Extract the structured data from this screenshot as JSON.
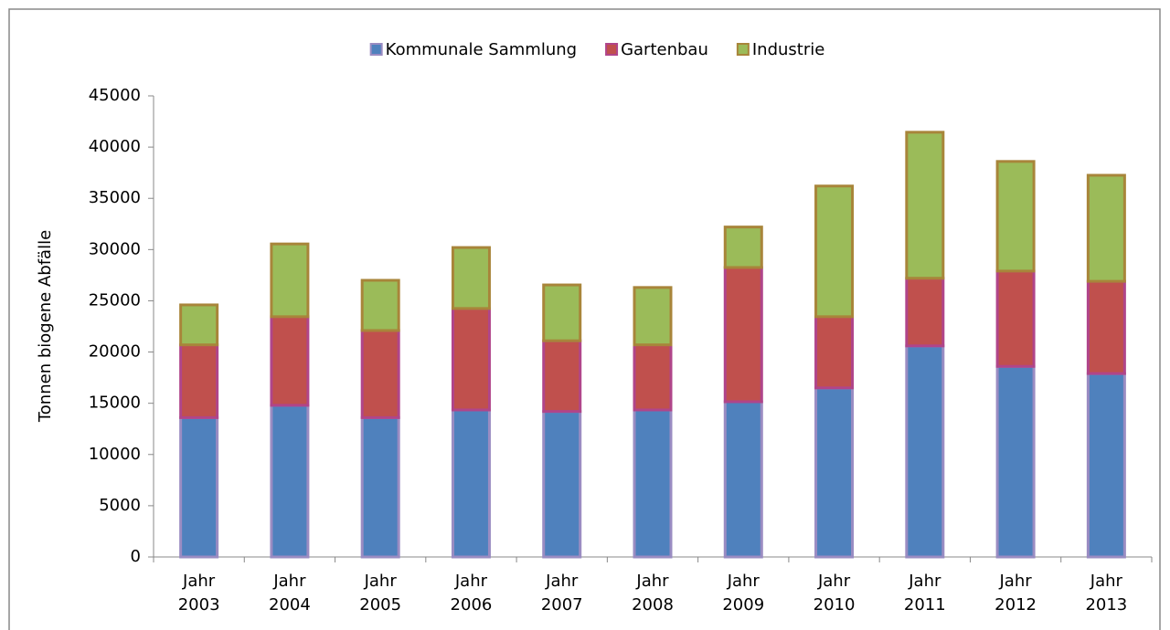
{
  "chart_data": {
    "type": "stacked_bar",
    "ylabel": "Tonnen biogene Abfälle",
    "categories": [
      "Jahr 2003",
      "Jahr 2004",
      "Jahr 2005",
      "Jahr 2006",
      "Jahr 2007",
      "Jahr 2008",
      "Jahr 2009",
      "Jahr 2010",
      "Jahr 2011",
      "Jahr 2012",
      "Jahr 2013"
    ],
    "series": [
      {
        "name": "Kommunale Sammlung",
        "color": "#4f81bd",
        "edgecolor": "#9a8cc2",
        "values": [
          13600,
          14800,
          13600,
          14350,
          14200,
          14350,
          15150,
          16500,
          20600,
          18600,
          17900
        ]
      },
      {
        "name": "Gartenbau",
        "color": "#c0504d",
        "edgecolor": "#b0458a",
        "values": [
          7100,
          8650,
          8500,
          9900,
          6900,
          6350,
          13100,
          6950,
          6600,
          9300,
          9000
        ]
      },
      {
        "name": "Industrie",
        "color": "#9bbb59",
        "edgecolor": "#a8853a",
        "values": [
          3900,
          7100,
          4900,
          5950,
          5450,
          5600,
          3950,
          12750,
          14250,
          10700,
          10350
        ]
      }
    ],
    "ylim": [
      0,
      45000
    ],
    "yticks": [
      0,
      5000,
      10000,
      15000,
      20000,
      25000,
      30000,
      35000,
      40000,
      45000
    ],
    "legend": "top",
    "grid": false
  }
}
